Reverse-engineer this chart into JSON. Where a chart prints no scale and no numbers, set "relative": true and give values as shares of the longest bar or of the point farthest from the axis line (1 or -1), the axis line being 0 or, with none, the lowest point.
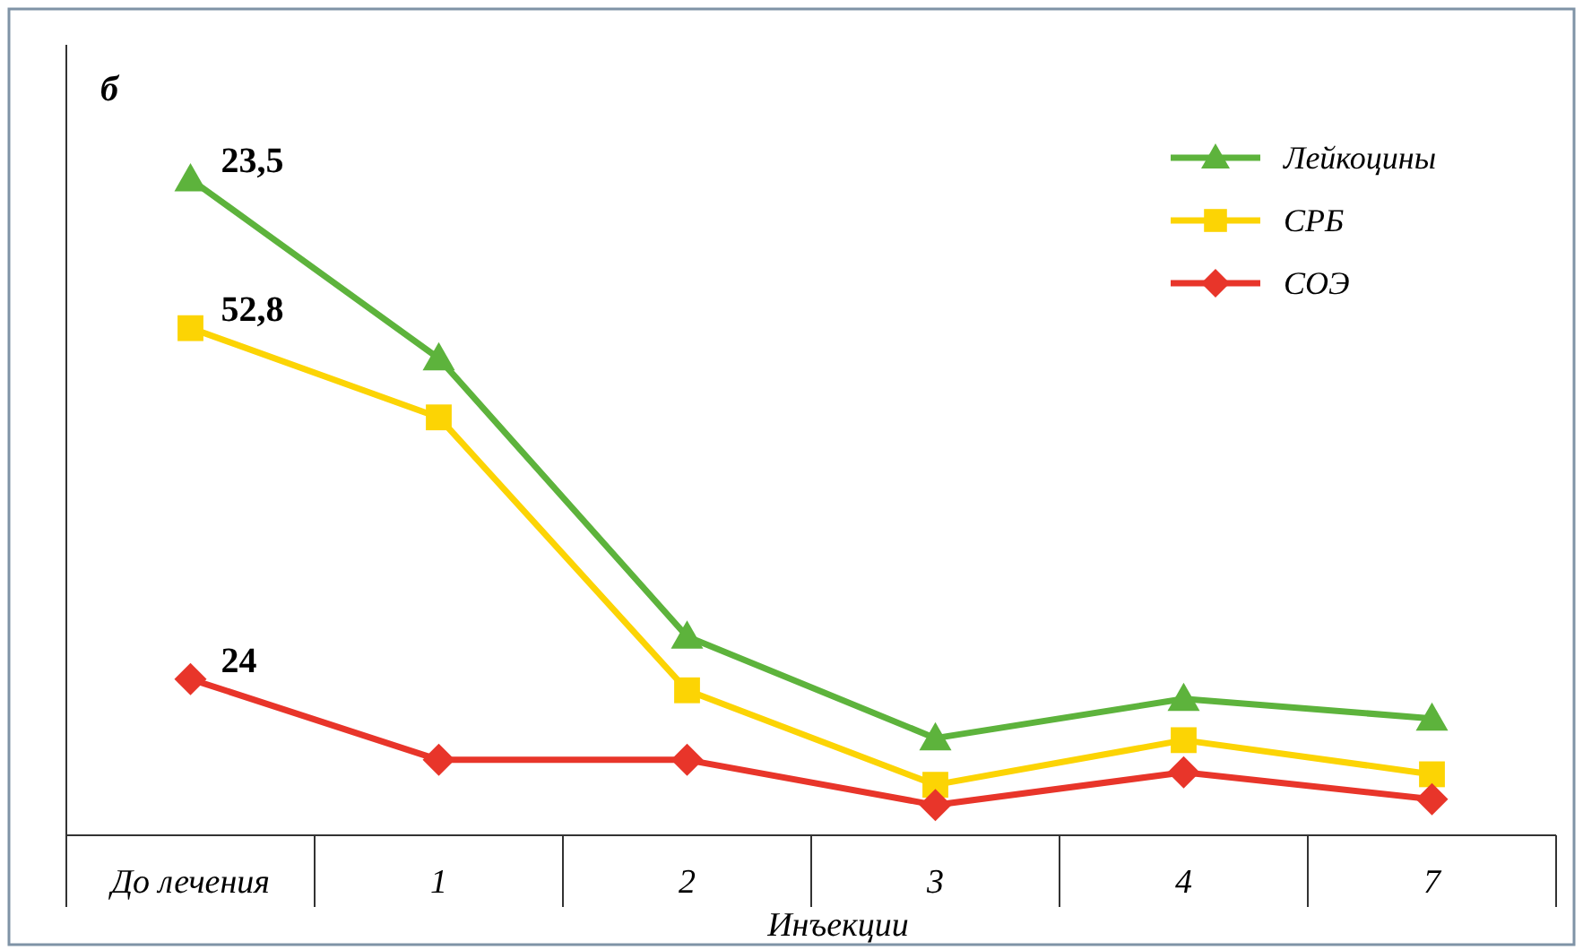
{
  "chart_data": {
    "type": "line",
    "title": "б",
    "xlabel": "Инъекции",
    "relative": true,
    "legend": "top right",
    "categories": [
      "До лечения",
      "1",
      "2",
      "3",
      "4",
      "7"
    ],
    "series": [
      {
        "name": "Лейкоцины",
        "color": "#5db33c",
        "marker": "triangle",
        "values": [
          1,
          0.727,
          0.303,
          0.148,
          0.208,
          0.178
        ]
      },
      {
        "name": "СРБ",
        "color": "#fcd404",
        "marker": "square",
        "values": [
          0.773,
          0.637,
          0.221,
          0.077,
          0.145,
          0.093
        ]
      },
      {
        "name": "СОЭ",
        "color": "#e8352a",
        "marker": "diamond",
        "values": [
          0.238,
          0.115,
          0.115,
          0.046,
          0.096,
          0.055
        ]
      }
    ],
    "annotations": [
      "23,5",
      "52,8",
      "24"
    ]
  }
}
